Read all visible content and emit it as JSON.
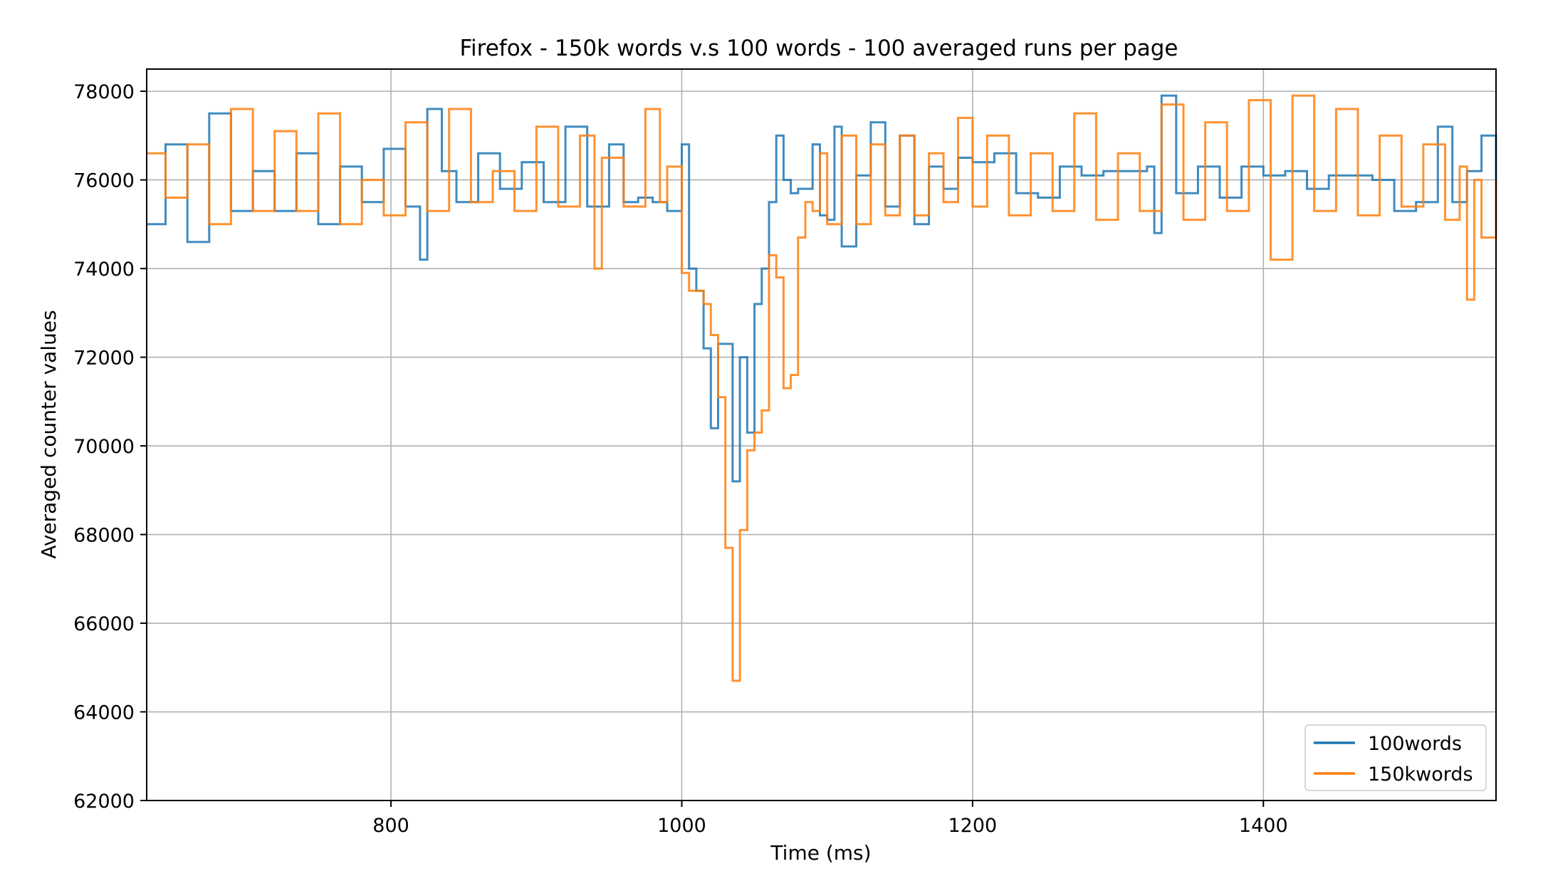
{
  "chart_data": {
    "type": "line",
    "title": "Firefox - 150k words v.s 100 words - 100 averaged runs per page",
    "xlabel": "Time (ms)",
    "ylabel": "Averaged counter values",
    "xlim": [
      632,
      1560
    ],
    "ylim": [
      62000,
      78500
    ],
    "xticks": [
      800,
      1000,
      1200,
      1400
    ],
    "yticks": [
      62000,
      64000,
      66000,
      68000,
      70000,
      72000,
      74000,
      76000,
      78000
    ],
    "grid": true,
    "legend_position": "bottom-right",
    "series": [
      {
        "name": "100words",
        "color": "#1f77b4",
        "x": [
          632,
          645,
          660,
          675,
          690,
          705,
          720,
          735,
          750,
          765,
          780,
          795,
          810,
          820,
          825,
          835,
          845,
          860,
          875,
          890,
          905,
          920,
          935,
          950,
          960,
          970,
          980,
          990,
          1000,
          1005,
          1010,
          1015,
          1020,
          1025,
          1030,
          1035,
          1040,
          1045,
          1050,
          1055,
          1060,
          1065,
          1070,
          1075,
          1080,
          1085,
          1090,
          1095,
          1100,
          1105,
          1110,
          1120,
          1130,
          1140,
          1150,
          1160,
          1170,
          1180,
          1190,
          1200,
          1215,
          1230,
          1245,
          1260,
          1275,
          1290,
          1305,
          1320,
          1325,
          1330,
          1340,
          1355,
          1370,
          1385,
          1400,
          1415,
          1430,
          1445,
          1460,
          1475,
          1490,
          1505,
          1520,
          1530,
          1540,
          1550,
          1560
        ],
        "values": [
          75000,
          76800,
          74600,
          77500,
          75300,
          76200,
          75300,
          76600,
          75000,
          76300,
          75500,
          76700,
          75400,
          74200,
          77600,
          76200,
          75500,
          76600,
          75800,
          76400,
          75500,
          77200,
          75400,
          76800,
          75500,
          75600,
          75500,
          75300,
          76800,
          74000,
          73500,
          72200,
          70400,
          72300,
          72300,
          69200,
          72000,
          70300,
          73200,
          74000,
          75500,
          77000,
          76000,
          75700,
          75800,
          75800,
          76800,
          75200,
          75100,
          77200,
          74500,
          76100,
          77300,
          75400,
          77000,
          75000,
          76300,
          75800,
          76500,
          76400,
          76600,
          75700,
          75600,
          76300,
          76100,
          76200,
          76200,
          76300,
          74800,
          77900,
          75700,
          76300,
          75600,
          76300,
          76100,
          76200,
          75800,
          76100,
          76100,
          76000,
          75300,
          75500,
          77200,
          75500,
          76200,
          77000,
          75800
        ]
      },
      {
        "name": "150kwords",
        "color": "#ff7f0e",
        "x": [
          632,
          645,
          660,
          675,
          690,
          705,
          720,
          735,
          750,
          765,
          780,
          795,
          810,
          825,
          840,
          855,
          870,
          885,
          900,
          915,
          930,
          940,
          945,
          960,
          975,
          985,
          990,
          1000,
          1005,
          1010,
          1015,
          1020,
          1025,
          1030,
          1035,
          1040,
          1045,
          1050,
          1055,
          1060,
          1065,
          1070,
          1075,
          1080,
          1085,
          1090,
          1095,
          1100,
          1110,
          1120,
          1130,
          1140,
          1150,
          1160,
          1170,
          1180,
          1190,
          1200,
          1210,
          1225,
          1240,
          1255,
          1270,
          1285,
          1300,
          1315,
          1330,
          1345,
          1360,
          1375,
          1390,
          1405,
          1420,
          1435,
          1450,
          1465,
          1480,
          1495,
          1510,
          1525,
          1535,
          1540,
          1545,
          1550,
          1560
        ],
        "values": [
          76600,
          75600,
          76800,
          75000,
          77600,
          75300,
          77100,
          75300,
          77500,
          75000,
          76000,
          75200,
          77300,
          75300,
          77600,
          75500,
          76200,
          75300,
          77200,
          75400,
          77000,
          74000,
          76500,
          75400,
          77600,
          75500,
          76300,
          73900,
          73500,
          73500,
          73200,
          72500,
          71100,
          67700,
          64700,
          68100,
          69900,
          70300,
          70800,
          74300,
          73800,
          71300,
          71600,
          74700,
          75500,
          75300,
          76600,
          75000,
          77000,
          75000,
          76800,
          75200,
          77000,
          75200,
          76600,
          75500,
          77400,
          75400,
          77000,
          75200,
          76600,
          75300,
          77500,
          75100,
          76600,
          75300,
          77700,
          75100,
          77300,
          75300,
          77800,
          74200,
          77900,
          75300,
          77600,
          75200,
          77000,
          75400,
          76800,
          75100,
          76300,
          73300,
          76000,
          74700,
          76000
        ]
      }
    ]
  }
}
